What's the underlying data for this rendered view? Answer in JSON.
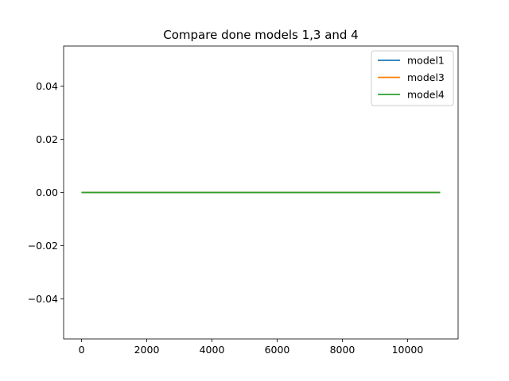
{
  "chart_data": {
    "type": "line",
    "title": "Compare done models 1,3 and 4",
    "xlabel": "",
    "ylabel": "",
    "xlim": [
      -550,
      11550
    ],
    "ylim": [
      -0.055,
      0.055
    ],
    "x_ticks": [
      0,
      2000,
      4000,
      6000,
      8000,
      10000
    ],
    "x_tick_labels": [
      "0",
      "2000",
      "4000",
      "6000",
      "8000",
      "10000"
    ],
    "y_ticks": [
      0.04,
      0.02,
      0.0,
      -0.02,
      -0.04
    ],
    "y_tick_labels": [
      "0.04",
      "0.02",
      "0.00",
      "−0.02",
      "−0.04"
    ],
    "grid": false,
    "legend_position": "top-right",
    "series": [
      {
        "name": "model1",
        "color": "#1f77b4",
        "x": [
          0,
          11000
        ],
        "y": [
          0,
          0
        ]
      },
      {
        "name": "model3",
        "color": "#ff7f0e",
        "x": [
          0,
          11000
        ],
        "y": [
          0,
          0
        ]
      },
      {
        "name": "model4",
        "color": "#2ca02c",
        "x": [
          0,
          11000
        ],
        "y": [
          0,
          0
        ]
      }
    ]
  }
}
